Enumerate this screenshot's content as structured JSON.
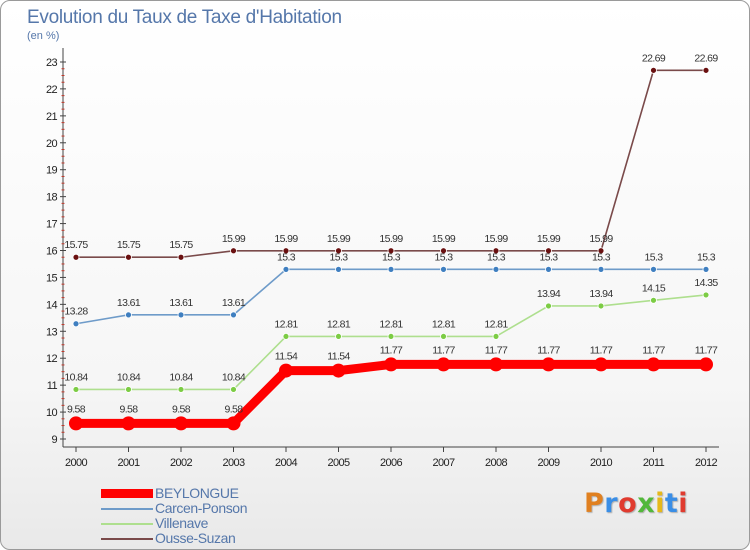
{
  "title": "Evolution du Taux de Taxe d'Habitation",
  "subtitle": "(en %)",
  "logo": "Proxiti",
  "chart_data": {
    "type": "line",
    "title": "Evolution du Taux de Taxe d'Habitation",
    "ylabel": "(en %)",
    "xlabel": "",
    "categories": [
      "2000",
      "2001",
      "2002",
      "2003",
      "2004",
      "2005",
      "2006",
      "2007",
      "2008",
      "2009",
      "2010",
      "2011",
      "2012"
    ],
    "ylim": [
      9,
      23
    ],
    "yticks": [
      9,
      10,
      11,
      12,
      13,
      14,
      15,
      16,
      17,
      18,
      19,
      20,
      21,
      22,
      23
    ],
    "grid": false,
    "legend_position": "bottom-left",
    "series": [
      {
        "name": "BEYLONGUE",
        "color": "#ff0000",
        "marker": "#ff0000",
        "values": [
          9.58,
          9.58,
          9.58,
          9.58,
          11.54,
          11.54,
          11.77,
          11.77,
          11.77,
          11.77,
          11.77,
          11.77,
          11.77
        ],
        "labels": [
          "9.58",
          "9.58",
          "9.58",
          "9.58",
          "11.54",
          "11.54",
          "11.77",
          "11.77",
          "11.77",
          "11.77",
          "11.77",
          "11.77",
          "11.77"
        ]
      },
      {
        "name": "Carcen-Ponson",
        "color": "#6e9bc9",
        "marker": "#3f7fc0",
        "values": [
          13.28,
          13.61,
          13.61,
          13.61,
          15.3,
          15.3,
          15.3,
          15.3,
          15.3,
          15.3,
          15.3,
          15.3,
          15.3
        ],
        "labels": [
          "13.28",
          "13.61",
          "13.61",
          "13.61",
          "15.3",
          "15.3",
          "15.3",
          "15.3",
          "15.3",
          "15.3",
          "15.3",
          "15.3",
          "15.3"
        ]
      },
      {
        "name": "Villenave",
        "color": "#aedf8e",
        "marker": "#7ccc44",
        "values": [
          10.84,
          10.84,
          10.84,
          10.84,
          12.81,
          12.81,
          12.81,
          12.81,
          12.81,
          13.94,
          13.94,
          14.15,
          14.35
        ],
        "labels": [
          "10.84",
          "10.84",
          "10.84",
          "10.84",
          "12.81",
          "12.81",
          "12.81",
          "12.81",
          "12.81",
          "13.94",
          "13.94",
          "14.15",
          "14.35"
        ]
      },
      {
        "name": "Ousse-Suzan",
        "color": "#7a4a4a",
        "marker": "#6a1010",
        "values": [
          15.75,
          15.75,
          15.75,
          15.99,
          15.99,
          15.99,
          15.99,
          15.99,
          15.99,
          15.99,
          15.99,
          22.69,
          22.69
        ],
        "labels": [
          "15.75",
          "15.75",
          "15.75",
          "15.99",
          "15.99",
          "15.99",
          "15.99",
          "15.99",
          "15.99",
          "15.99",
          "15.99",
          "22.69",
          "22.69"
        ]
      }
    ]
  }
}
